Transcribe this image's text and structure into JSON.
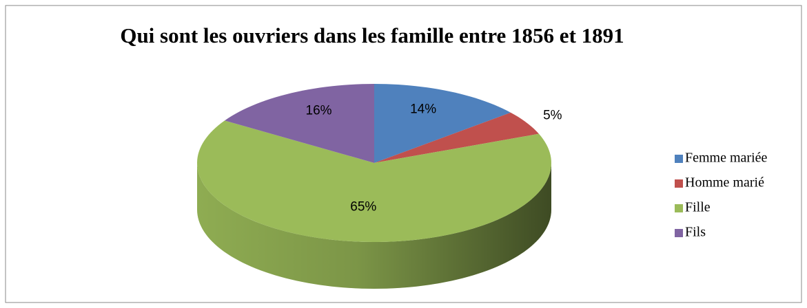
{
  "chart_data": {
    "type": "pie3d",
    "title": "Qui sont les ouvriers dans les famille entre 1856 et 1891",
    "categories": [
      "Femme mariée",
      "Homme marié",
      "Fille",
      "Fils"
    ],
    "values": [
      14,
      5,
      65,
      16
    ],
    "value_labels": [
      "14%",
      "5%",
      "65%",
      "16%"
    ],
    "colors": [
      "#4f81bd",
      "#c0504d",
      "#9bbb59",
      "#8064a2"
    ],
    "legend": "right"
  }
}
